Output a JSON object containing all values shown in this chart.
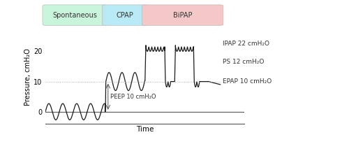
{
  "title": "",
  "xlabel": "Time",
  "ylabel": "Pressure, cmH₂O",
  "ylim": [
    -4,
    27
  ],
  "xlim": [
    0,
    100
  ],
  "yticks": [
    0,
    10,
    20
  ],
  "background_color": "#ffffff",
  "annotations": {
    "PEEP": "PEEP 10 cmH₂O",
    "IPAP": "IPAP 22 cmH₂O",
    "PS": "PS 12 cmH₂O",
    "EPAP": "EPAP 10 cmH₂O"
  },
  "segments": {
    "spontaneous": {
      "label": "Spontaneous",
      "color": "#c8f5dc",
      "xmin": 0,
      "xmax": 30
    },
    "cpap": {
      "label": "CPAP",
      "color": "#b8eaf5",
      "xmin": 30,
      "xmax": 50
    },
    "bipap": {
      "label": "BiPAP",
      "color": "#f5c8c8",
      "xmin": 50,
      "xmax": 88
    }
  },
  "dotted_line_y": 10,
  "dotted_line_color": "#aaaaaa",
  "line_color": "#1a1a1a",
  "spine_color": "#555555"
}
